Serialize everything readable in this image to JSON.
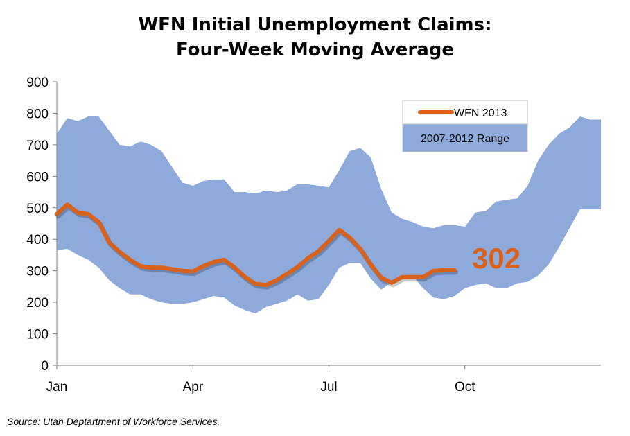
{
  "title_line1": "WFN Initial Unemployment Claims:",
  "title_line2": "Four-Week Moving Average",
  "source": "Source: Utah Deptartment of Workforce Services.",
  "callout_value": "302",
  "colors": {
    "line": "#d8621d",
    "band": "#8eaadb",
    "axis": "#808080"
  },
  "chart_data": {
    "type": "line",
    "ylim": [
      0,
      900
    ],
    "y_ticks": [
      0,
      100,
      200,
      300,
      400,
      500,
      600,
      700,
      800,
      900
    ],
    "x_range": [
      0,
      52
    ],
    "x_ticks": [
      {
        "label": "Jan",
        "week": 0
      },
      {
        "label": "Apr",
        "week": 13
      },
      {
        "label": "Jul",
        "week": 26
      },
      {
        "label": "Oct",
        "week": 39
      }
    ],
    "legend": {
      "position": "top-right",
      "entries": [
        "WFN 2013",
        "2007-2012 Range"
      ]
    },
    "range_band": {
      "name": "2007-2012 Range",
      "x": [
        0,
        1,
        2,
        3,
        4,
        5,
        6,
        7,
        8,
        9,
        10,
        11,
        12,
        13,
        14,
        15,
        16,
        17,
        18,
        19,
        20,
        21,
        22,
        23,
        24,
        25,
        26,
        27,
        28,
        29,
        30,
        31,
        32,
        33,
        34,
        35,
        36,
        37,
        38,
        39,
        40,
        41,
        42,
        43,
        44,
        45,
        46,
        47,
        48,
        49,
        50,
        51,
        52
      ],
      "low": [
        365,
        370,
        350,
        335,
        310,
        270,
        245,
        225,
        225,
        210,
        200,
        195,
        195,
        200,
        210,
        220,
        215,
        190,
        175,
        165,
        185,
        195,
        205,
        225,
        205,
        210,
        255,
        310,
        325,
        325,
        275,
        240,
        265,
        280,
        285,
        245,
        215,
        210,
        220,
        245,
        255,
        260,
        245,
        245,
        260,
        265,
        285,
        320,
        375,
        435,
        495,
        495,
        495
      ],
      "high": [
        735,
        785,
        775,
        790,
        790,
        745,
        700,
        695,
        710,
        700,
        680,
        630,
        580,
        570,
        585,
        590,
        590,
        550,
        550,
        545,
        555,
        550,
        555,
        575,
        575,
        570,
        565,
        620,
        680,
        690,
        660,
        560,
        485,
        465,
        455,
        440,
        435,
        445,
        445,
        440,
        485,
        490,
        520,
        525,
        530,
        570,
        650,
        700,
        735,
        755,
        790,
        780,
        780
      ]
    },
    "series": [
      {
        "name": "WFN 2013",
        "x": [
          0,
          1,
          2,
          3,
          4,
          5,
          6,
          7,
          8,
          9,
          10,
          11,
          12,
          13,
          14,
          15,
          16,
          17,
          18,
          19,
          20,
          21,
          22,
          23,
          24,
          25,
          26,
          27,
          28,
          29,
          30,
          31,
          32,
          33,
          34,
          35,
          36,
          37,
          38
        ],
        "values": [
          480,
          510,
          485,
          480,
          455,
          390,
          360,
          335,
          315,
          310,
          310,
          305,
          300,
          298,
          315,
          328,
          335,
          310,
          280,
          258,
          255,
          270,
          290,
          312,
          340,
          362,
          395,
          430,
          405,
          370,
          320,
          278,
          262,
          280,
          280,
          280,
          300,
          302,
          302
        ]
      }
    ]
  }
}
